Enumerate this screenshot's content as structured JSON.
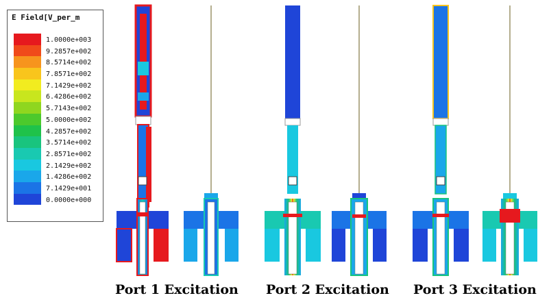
{
  "legend": {
    "title": "E Field[V_per_m",
    "entries": [
      {
        "label": "1.0000e+003",
        "color": "#e6191e"
      },
      {
        "label": "9.2857e+002",
        "color": "#f04a1a"
      },
      {
        "label": "8.5714e+002",
        "color": "#f7941d"
      },
      {
        "label": "7.8571e+002",
        "color": "#f9c51c"
      },
      {
        "label": "7.1429e+002",
        "color": "#f2ec1f"
      },
      {
        "label": "6.4286e+002",
        "color": "#c8e61e"
      },
      {
        "label": "5.7143e+002",
        "color": "#8fd61f"
      },
      {
        "label": "5.0000e+002",
        "color": "#4cc92c"
      },
      {
        "label": "4.2857e+002",
        "color": "#1fc24a"
      },
      {
        "label": "3.5714e+002",
        "color": "#19c47e"
      },
      {
        "label": "2.8571e+002",
        "color": "#19c9b1"
      },
      {
        "label": "2.1429e+002",
        "color": "#19c8e0"
      },
      {
        "label": "1.4286e+002",
        "color": "#1aa7ea"
      },
      {
        "label": "7.1429e+001",
        "color": "#1b74e6"
      },
      {
        "label": "0.0000e+000",
        "color": "#1f45d8"
      }
    ]
  },
  "captions": {
    "port1": "Port 1 Excitation",
    "port2": "Port 2 Excitation",
    "port3": "Port 3 Excitation"
  }
}
